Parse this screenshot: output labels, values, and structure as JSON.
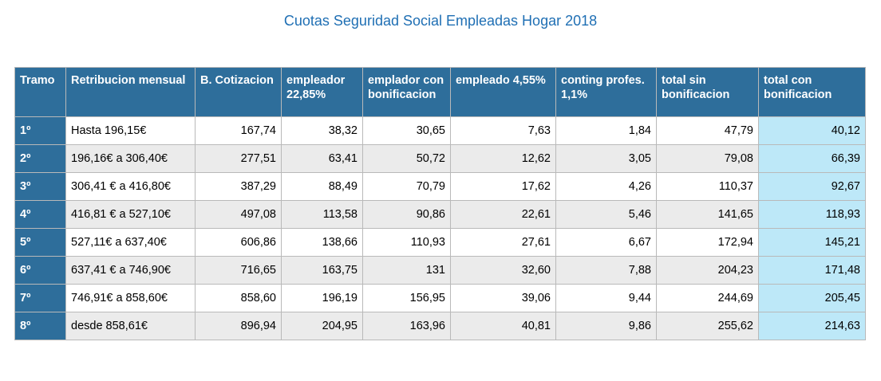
{
  "title": "Cuotas Seguridad Social Empleadas Hogar 2018",
  "table": {
    "headers": [
      "Tramo",
      "Retribucion mensual",
      "B. Cotizacion",
      "empleador 22,85%",
      "emplador con bonificacion",
      "empleado 4,55%",
      "conting profes. 1,1%",
      "total sin bonificacion",
      "total  con bonificacion"
    ],
    "rows": [
      [
        "1º",
        "Hasta 196,15€",
        "167,74",
        "38,32",
        "30,65",
        "7,63",
        "1,84",
        "47,79",
        "40,12"
      ],
      [
        "2º",
        "196,16€ a 306,40€",
        "277,51",
        "63,41",
        "50,72",
        "12,62",
        "3,05",
        "79,08",
        "66,39"
      ],
      [
        "3º",
        "306,41 € a 416,80€",
        "387,29",
        "88,49",
        "70,79",
        "17,62",
        "4,26",
        "110,37",
        "92,67"
      ],
      [
        "4º",
        "416,81 € a 527,10€",
        "497,08",
        "113,58",
        "90,86",
        "22,61",
        "5,46",
        "141,65",
        "118,93"
      ],
      [
        "5º",
        "527,11€ a 637,40€",
        "606,86",
        "138,66",
        "110,93",
        "27,61",
        "6,67",
        "172,94",
        "145,21"
      ],
      [
        "6º",
        "637,41 € a 746,90€",
        "716,65",
        "163,75",
        "131",
        "32,60",
        "7,88",
        "204,23",
        "171,48"
      ],
      [
        "7º",
        "746,91€ a 858,60€",
        "858,60",
        "196,19",
        "156,95",
        "39,06",
        "9,44",
        "244,69",
        "205,45"
      ],
      [
        "8º",
        "desde 858,61€",
        "896,94",
        "204,95",
        "163,96",
        "40,81",
        "9,86",
        "255,62",
        "214,63"
      ]
    ]
  },
  "colors": {
    "title": "#1f6fb4",
    "header_bg": "#2e6e9b",
    "header_text": "#ffffff",
    "row_alt": "#ebebeb",
    "highlight_col": "#bde8f8"
  }
}
